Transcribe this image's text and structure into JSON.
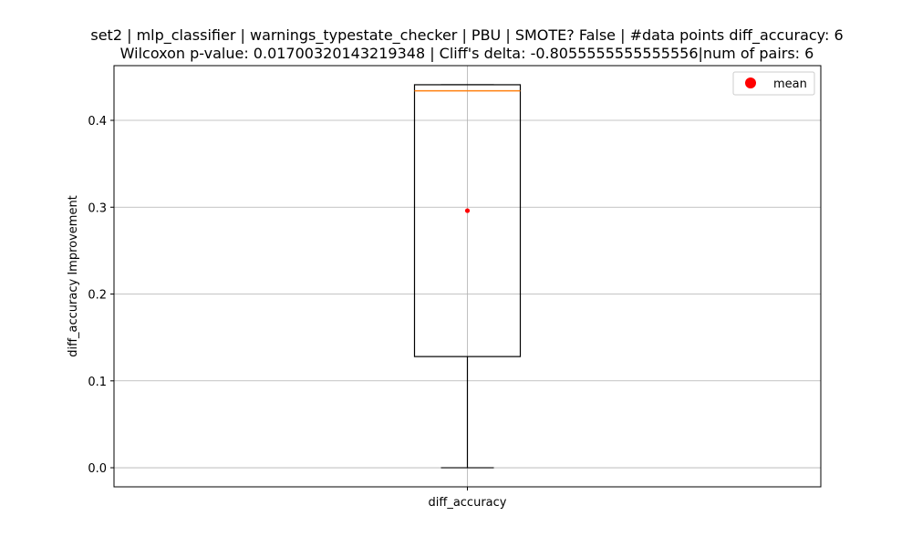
{
  "chart_data": {
    "type": "box",
    "title": [
      "set2 | mlp_classifier | warnings_typestate_checker | PBU | SMOTE? False | #data points diff_accuracy: 6",
      "Wilcoxon p-value: 0.01700320143219348 | Cliff's delta: -0.8055555555555556|num of pairs: 6"
    ],
    "xlabel": "",
    "ylabel": "diff_accuracy Improvement",
    "categories": [
      "diff_accuracy"
    ],
    "box": {
      "whisker_low": 0.0,
      "q1": 0.128,
      "median": 0.434,
      "q3": 0.441,
      "whisker_high": 0.441,
      "mean": 0.296
    },
    "yticks": [
      0.0,
      0.1,
      0.2,
      0.3,
      0.4
    ],
    "ytick_labels": [
      "0.0",
      "0.1",
      "0.2",
      "0.3",
      "0.4"
    ],
    "ylim": [
      -0.022,
      0.463
    ],
    "grid": true,
    "legend": {
      "position": "upper right",
      "entries": [
        {
          "label": "mean",
          "marker": "circle",
          "color": "#ff0000"
        }
      ]
    },
    "colors": {
      "box": "#000000",
      "median": "#ff7f0e",
      "mean": "#ff0000",
      "grid": "#b0b0b0"
    }
  }
}
